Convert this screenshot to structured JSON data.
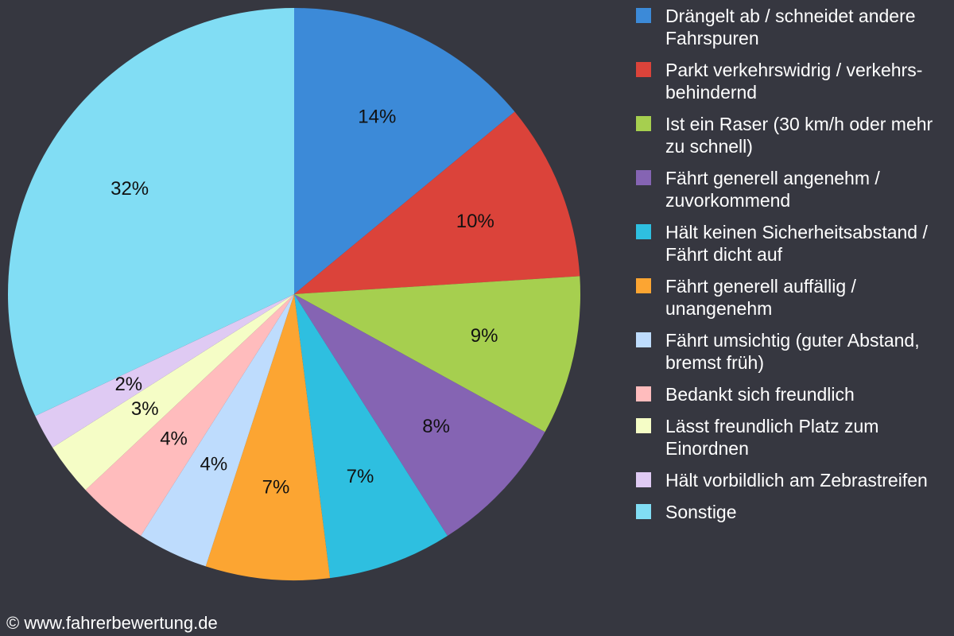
{
  "chart_data": {
    "type": "pie",
    "start_angle": "top",
    "direction": "clockwise",
    "legend_position": "right",
    "slices": [
      {
        "label": "Drängelt ab / schneidet andere Fahrspuren",
        "value": 14,
        "display": "14%",
        "color": "#3c8ad8"
      },
      {
        "label": "Parkt verkehrswidrig / verkehrs-behindernd",
        "value": 10,
        "display": "10%",
        "color": "#db433a"
      },
      {
        "label": "Ist ein Raser (30 km/h oder mehr zu schnell)",
        "value": 9,
        "display": "9%",
        "color": "#a6cf4f"
      },
      {
        "label": "Fährt generell angenehm / zuvorkommend",
        "value": 8,
        "display": "8%",
        "color": "#8564b3"
      },
      {
        "label": "Hält keinen Sicherheitsabstand / Fährt dicht auf",
        "value": 7,
        "display": "7%",
        "color": "#2ebfe0"
      },
      {
        "label": "Fährt generell auffällig / unangenehm",
        "value": 7,
        "display": "7%",
        "color": "#fca532"
      },
      {
        "label": "Fährt umsichtig (guter Abstand, bremst früh)",
        "value": 4,
        "display": "4%",
        "color": "#bedcfd"
      },
      {
        "label": "Bedankt sich freundlich",
        "value": 4,
        "display": "4%",
        "color": "#ffbcbd"
      },
      {
        "label": "Lässt freundlich Platz zum Einordnen",
        "value": 3,
        "display": "3%",
        "color": "#f5fdc6"
      },
      {
        "label": "Hält vorbildlich am Zebrastreifen",
        "value": 2,
        "display": "2%",
        "color": "#dfcaf3"
      },
      {
        "label": "Sonstige",
        "value": 32,
        "display": "32%",
        "color": "#81ddf4"
      }
    ]
  },
  "copyright": "© www.fahrerbewertung.de"
}
